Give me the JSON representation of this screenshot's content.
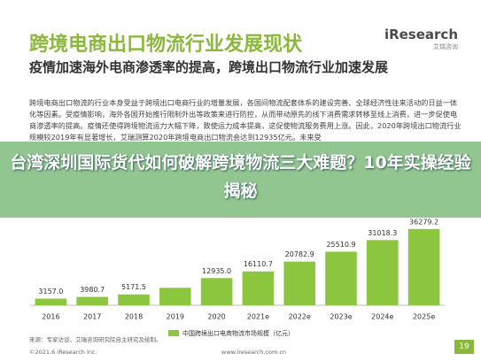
{
  "header": {
    "title": "跨境电商出口物流行业发展现状",
    "logo": "iResearch",
    "logo_sub": "艾瑞咨询"
  },
  "subtitle": "疫情加速海外电商渗透率的提高，跨境出口物流行业加速发展",
  "paragraph": "跨境电商出口物流的行业本身受益于跨境出口电商行业的增量发展，各国间物流配套体系的建设完善、全球经济性往来活动的日益一体化等因素。受疫情影响，海外各国开始推行限制外出等政策来进行防控，从而带动原先的线下消费需求转移至线上消费，进一步促使电商渗透率的提高。疫情还使得跨境物流运力大幅下降，致使运力成本提高，这促使物流服务费用上涨。因此，2020年跨境出口物流行业规模较2019年有显著增长，艾瑞测算2020年跨境电商出口物流会达到12935亿元。未来受",
  "banner": "台湾深圳国际货代如何破解跨境物流三大难题？10年实操经验揭秘",
  "chart_data": {
    "type": "bar",
    "categories": [
      "2016",
      "2017",
      "2018",
      "2019",
      "2020",
      "2021e",
      "2022e",
      "2023e",
      "2024e",
      "2025e"
    ],
    "series": [
      {
        "name": "中国跨境出口电商物流市场规模（亿元）",
        "color": "#8cc63f",
        "values": [
          3157.0,
          3980.7,
          5171.5,
          8300,
          12935.0,
          16110.7,
          20782.9,
          25510.9,
          31018.3,
          36279.2
        ],
        "value_labels": [
          "3157.0",
          "3980.7",
          "5171.5",
          null,
          "12935.0",
          "16110.7",
          "20782.9",
          "25510.9",
          "31018.3",
          "36279.2"
        ]
      }
    ],
    "ylim": [
      0,
      40000
    ]
  },
  "footer": {
    "source": "来源：专家访谈，艾瑞咨询研究院自主研究及绘制。",
    "copyright": "©2021.6 iResearch Inc.",
    "site": "www.iresearch.com.cn",
    "page": "19"
  }
}
